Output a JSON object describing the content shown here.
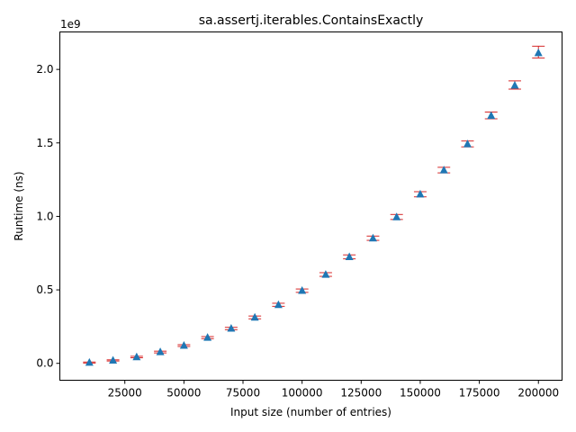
{
  "chart_data": {
    "type": "scatter",
    "title": "sa.assertj.iterables.ContainsExactly",
    "xlabel": "Input size (number of entries)",
    "ylabel": "Runtime (ns)",
    "y_scale_label": "1e9",
    "xlim": [
      -2500,
      210000
    ],
    "ylim": [
      -0.115,
      2.255
    ],
    "x_ticks": [
      25000,
      50000,
      75000,
      100000,
      125000,
      150000,
      175000,
      200000
    ],
    "x_tick_labels": [
      "25000",
      "50000",
      "75000",
      "100000",
      "125000",
      "150000",
      "175000",
      "200000"
    ],
    "y_ticks": [
      0.0,
      0.5,
      1.0,
      1.5,
      2.0
    ],
    "y_tick_labels": [
      "0.0",
      "0.5",
      "1.0",
      "1.5",
      "2.0"
    ],
    "grid": false,
    "marker": "triangle",
    "marker_color": "#1f77b4",
    "errorbar_color": "#d62728",
    "points": [
      {
        "x": 10000,
        "y": 0.005,
        "ylo": 0.002,
        "yhi": 0.009
      },
      {
        "x": 20000,
        "y": 0.02,
        "ylo": 0.016,
        "yhi": 0.024
      },
      {
        "x": 30000,
        "y": 0.043,
        "ylo": 0.038,
        "yhi": 0.048
      },
      {
        "x": 40000,
        "y": 0.077,
        "ylo": 0.071,
        "yhi": 0.083
      },
      {
        "x": 50000,
        "y": 0.121,
        "ylo": 0.115,
        "yhi": 0.127
      },
      {
        "x": 60000,
        "y": 0.175,
        "ylo": 0.168,
        "yhi": 0.182
      },
      {
        "x": 70000,
        "y": 0.237,
        "ylo": 0.229,
        "yhi": 0.245
      },
      {
        "x": 80000,
        "y": 0.312,
        "ylo": 0.303,
        "yhi": 0.322
      },
      {
        "x": 90000,
        "y": 0.398,
        "ylo": 0.388,
        "yhi": 0.409
      },
      {
        "x": 100000,
        "y": 0.494,
        "ylo": 0.483,
        "yhi": 0.506
      },
      {
        "x": 110000,
        "y": 0.604,
        "ylo": 0.592,
        "yhi": 0.617
      },
      {
        "x": 120000,
        "y": 0.724,
        "ylo": 0.711,
        "yhi": 0.738
      },
      {
        "x": 130000,
        "y": 0.851,
        "ylo": 0.837,
        "yhi": 0.866
      },
      {
        "x": 140000,
        "y": 0.995,
        "ylo": 0.979,
        "yhi": 1.013
      },
      {
        "x": 150000,
        "y": 1.15,
        "ylo": 1.133,
        "yhi": 1.168
      },
      {
        "x": 160000,
        "y": 1.314,
        "ylo": 1.296,
        "yhi": 1.334
      },
      {
        "x": 170000,
        "y": 1.492,
        "ylo": 1.473,
        "yhi": 1.513
      },
      {
        "x": 180000,
        "y": 1.685,
        "ylo": 1.664,
        "yhi": 1.71
      },
      {
        "x": 190000,
        "y": 1.891,
        "ylo": 1.866,
        "yhi": 1.922
      },
      {
        "x": 200000,
        "y": 2.112,
        "ylo": 2.078,
        "yhi": 2.158
      }
    ]
  }
}
